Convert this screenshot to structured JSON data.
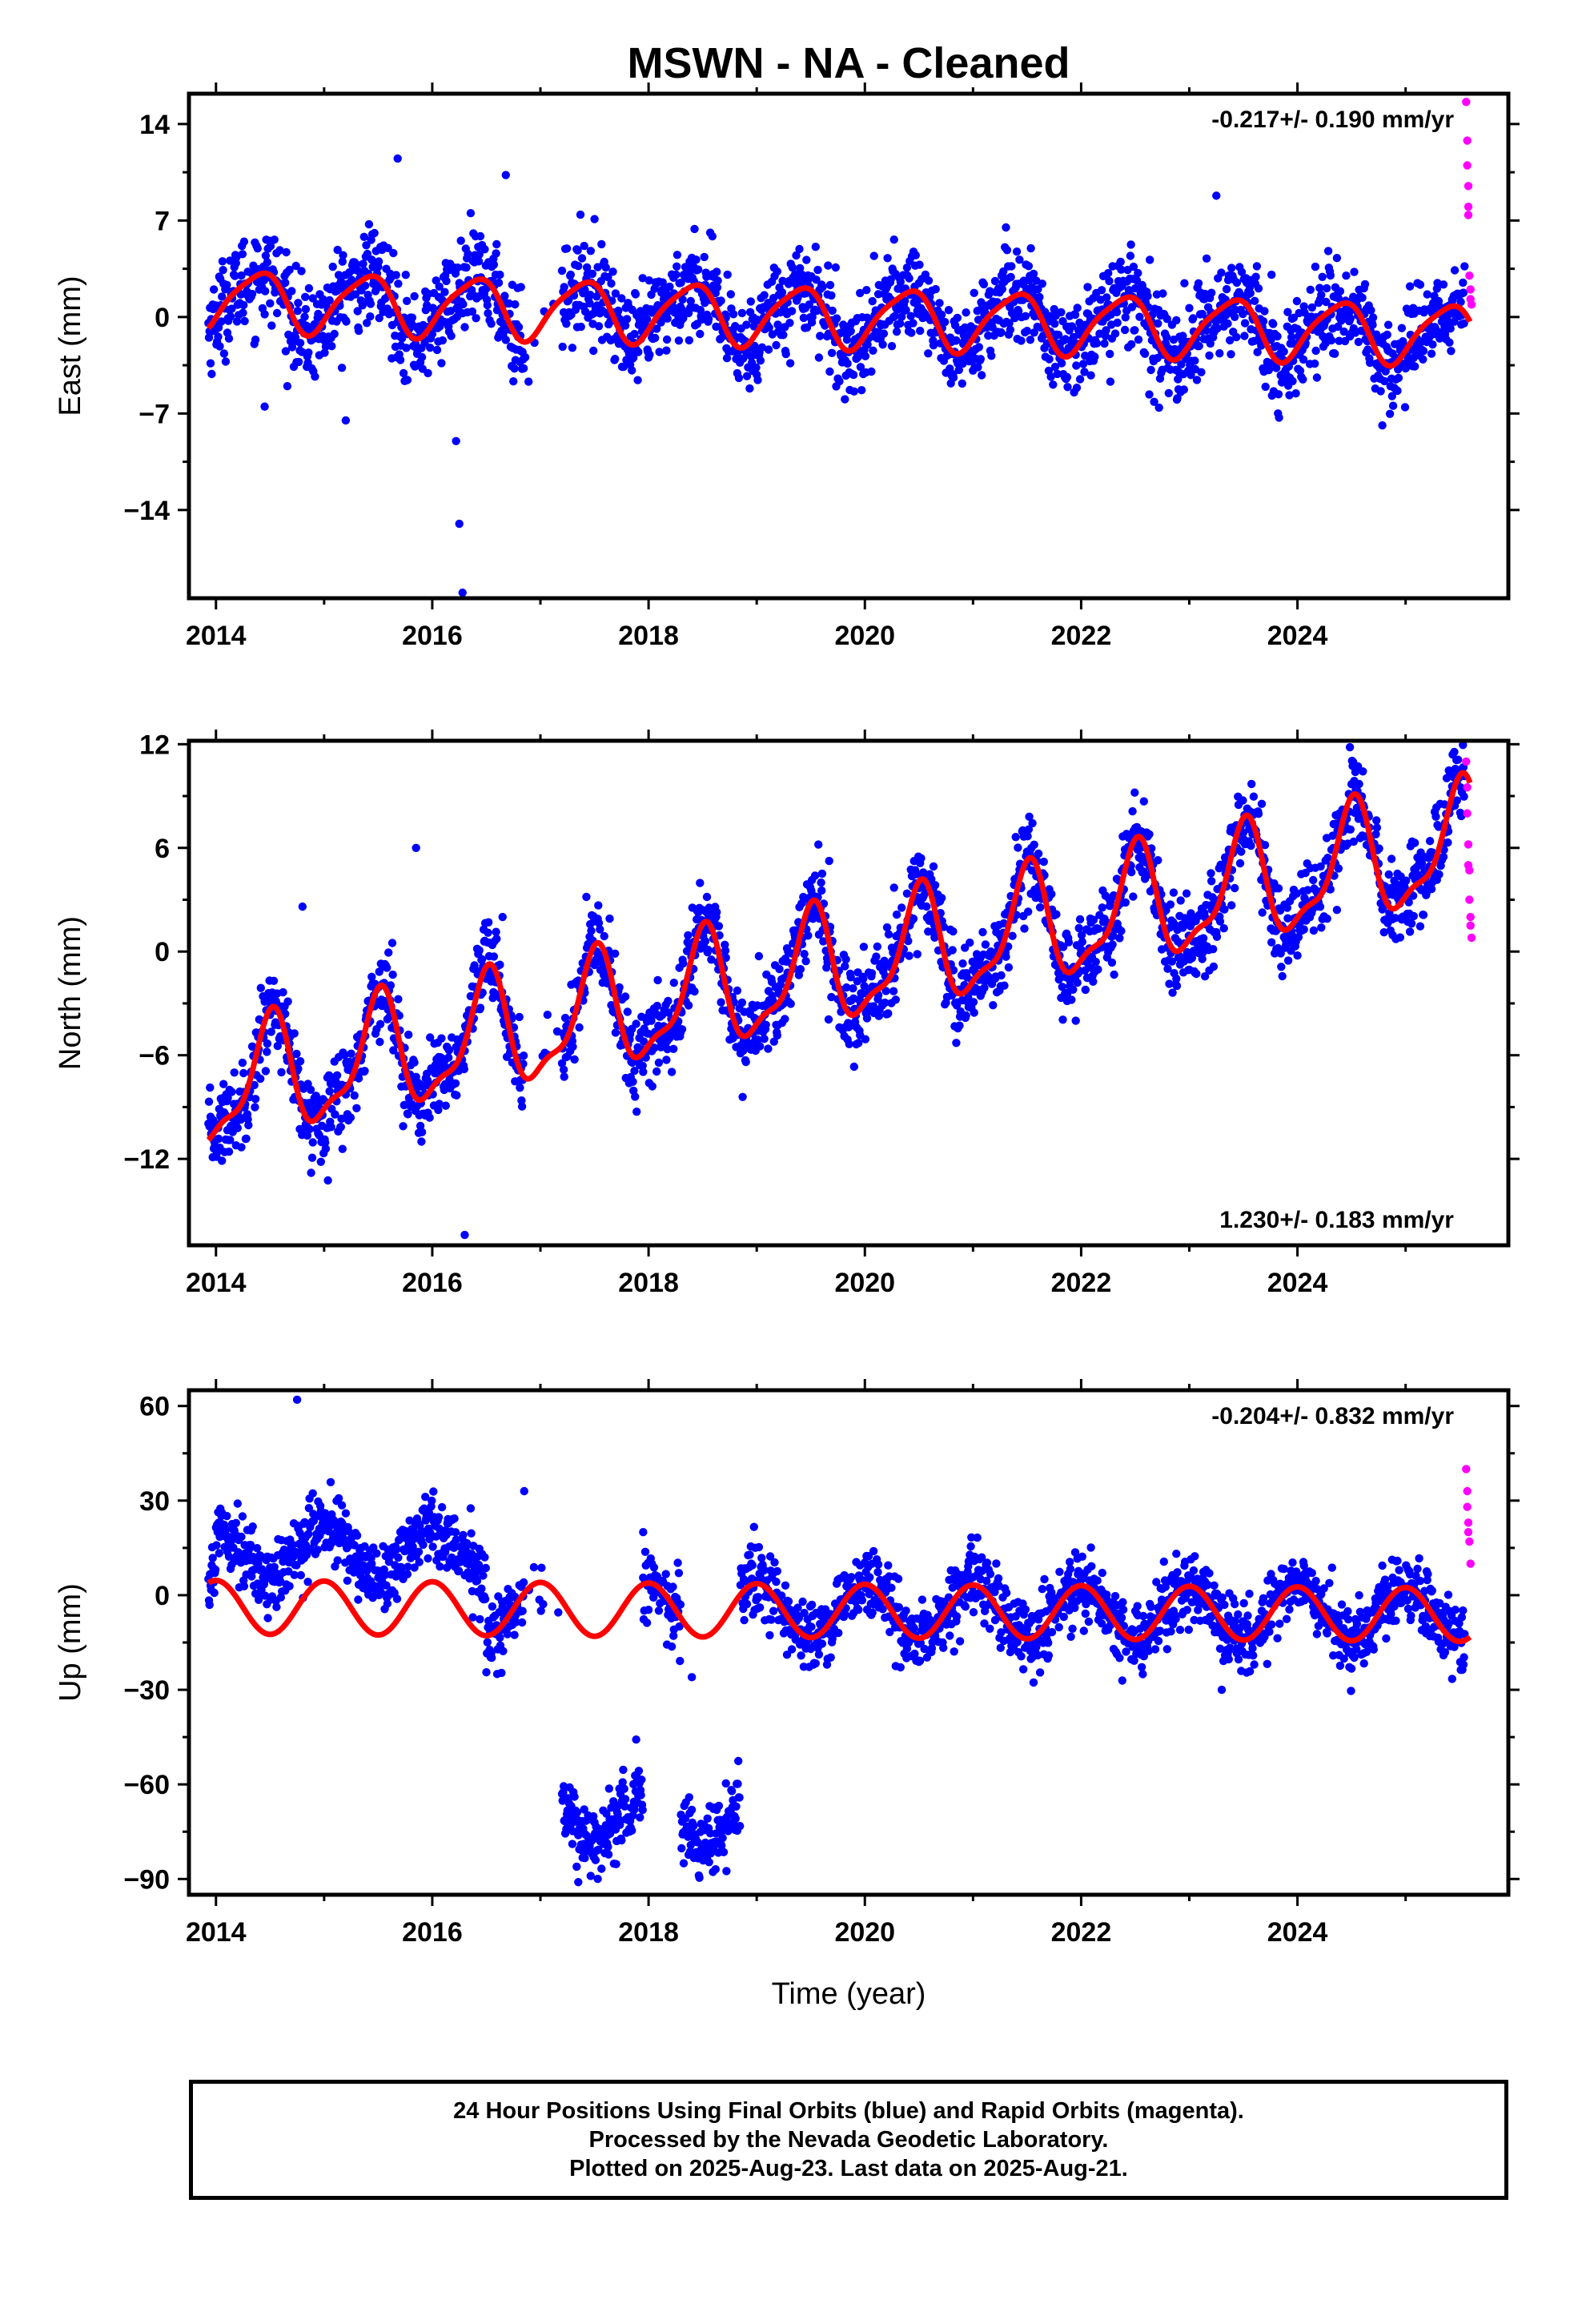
{
  "title": "MSWN  - NA - Cleaned",
  "xlabel": "Time (year)",
  "footer": {
    "line1": "24 Hour Positions Using Final Orbits (blue) and Rapid Orbits (magenta).",
    "line2": "Processed by the Nevada Geodetic Laboratory.",
    "line3": "Plotted on 2025-Aug-23. Last data on 2025-Aug-21."
  },
  "colors": {
    "final_orbits": "#0000ff",
    "rapid_orbits": "#ff00ff",
    "model": "#ff0000",
    "frame": "#000000"
  },
  "chart_data": [
    {
      "type": "scatter",
      "ylabel": "East (mm)",
      "rate_label": "-0.217+/- 0.190 mm/yr",
      "rate_position": "top-right",
      "xlim": [
        2013.75,
        2025.95
      ],
      "ylim": [
        -20.4,
        16.2
      ],
      "xticks": [
        2014,
        2016,
        2018,
        2020,
        2022,
        2024
      ],
      "xtick_labels": [
        "2014",
        "2016",
        "2018",
        "2020",
        "2022",
        "2024"
      ],
      "yticks": [
        14,
        7,
        0,
        -7,
        -14
      ],
      "ytick_labels": [
        "14",
        "7",
        "0",
        "−7",
        "−14"
      ],
      "trend": {
        "mean_year": 2019.8,
        "mean_value": 0.0,
        "rate": -0.217
      },
      "seasonal": {
        "annual_sin": 1.4,
        "annual_cos": -1.6,
        "semiannual_sin": 0.3,
        "semiannual_cos": 0.3
      },
      "noise_sd": 1.7,
      "gaps": [
        [
          2016.85,
          2017.2
        ]
      ],
      "final_orbit_outliers": [
        {
          "x": 2016.25,
          "y": -15.0
        },
        {
          "x": 2016.28,
          "y": -20.0
        },
        {
          "x": 2016.22,
          "y": -9.0
        },
        {
          "x": 2016.68,
          "y": 10.3
        },
        {
          "x": 2015.68,
          "y": 11.5
        },
        {
          "x": 2023.25,
          "y": 8.8
        },
        {
          "x": 2014.45,
          "y": -6.5
        },
        {
          "x": 2015.2,
          "y": -7.5
        }
      ],
      "rapid_orbits": [
        {
          "x": 2025.56,
          "y": 15.6
        },
        {
          "x": 2025.57,
          "y": 12.8
        },
        {
          "x": 2025.57,
          "y": 11.0
        },
        {
          "x": 2025.58,
          "y": 9.5
        },
        {
          "x": 2025.58,
          "y": 8.0
        },
        {
          "x": 2025.58,
          "y": 7.4
        },
        {
          "x": 2025.59,
          "y": 3.0
        },
        {
          "x": 2025.6,
          "y": 2.0
        },
        {
          "x": 2025.6,
          "y": 1.3
        },
        {
          "x": 2025.61,
          "y": 0.9
        }
      ]
    },
    {
      "type": "scatter",
      "ylabel": "North (mm)",
      "rate_label": "1.230+/- 0.183 mm/yr",
      "rate_position": "bottom-right",
      "xlim": [
        2013.75,
        2025.95
      ],
      "ylim": [
        -17,
        12.2
      ],
      "xticks": [
        2014,
        2016,
        2018,
        2020,
        2022,
        2024
      ],
      "xtick_labels": [
        "2014",
        "2016",
        "2018",
        "2020",
        "2022",
        "2024"
      ],
      "yticks": [
        12,
        6,
        0,
        -6,
        -12
      ],
      "ytick_labels": [
        "12",
        "6",
        "0",
        "−6",
        "−12"
      ],
      "trend": {
        "mean_year": 2019.8,
        "mean_value": -0.9,
        "rate": 1.23
      },
      "seasonal": {
        "annual_sin": 0.0,
        "annual_cos": -3.2,
        "semiannual_sin": 0.6,
        "semiannual_cos": 0.9
      },
      "noise_sd": 1.25,
      "gaps": [
        [
          2016.85,
          2017.2
        ]
      ],
      "final_orbit_outliers": [
        {
          "x": 2016.3,
          "y": -16.4
        },
        {
          "x": 2015.85,
          "y": 6.0
        },
        {
          "x": 2014.8,
          "y": 2.6
        },
        {
          "x": 2016.65,
          "y": 2.0
        }
      ],
      "rapid_orbits": [
        {
          "x": 2025.56,
          "y": 11.0
        },
        {
          "x": 2025.57,
          "y": 9.5
        },
        {
          "x": 2025.57,
          "y": 8.0
        },
        {
          "x": 2025.58,
          "y": 6.2
        },
        {
          "x": 2025.58,
          "y": 5.0
        },
        {
          "x": 2025.59,
          "y": 4.7
        },
        {
          "x": 2025.59,
          "y": 3.0
        },
        {
          "x": 2025.6,
          "y": 2.0
        },
        {
          "x": 2025.6,
          "y": 1.5
        },
        {
          "x": 2025.61,
          "y": 0.8
        }
      ]
    },
    {
      "type": "scatter",
      "ylabel": "Up (mm)",
      "rate_label": "-0.204+/- 0.832 mm/yr",
      "rate_position": "top-right",
      "xlim": [
        2013.75,
        2025.95
      ],
      "ylim": [
        -95,
        65
      ],
      "xticks": [
        2014,
        2016,
        2018,
        2020,
        2022,
        2024
      ],
      "xtick_labels": [
        "2014",
        "2016",
        "2018",
        "2020",
        "2022",
        "2024"
      ],
      "yticks": [
        60,
        30,
        0,
        -30,
        -60,
        -90
      ],
      "ytick_labels": [
        "60",
        "30",
        "0",
        "−30",
        "−60",
        "−90"
      ],
      "trend": {
        "mean_year": 2019.8,
        "mean_value": -5.0,
        "rate": -0.204
      },
      "seasonal": {
        "annual_sin": 0.0,
        "annual_cos": 8.5,
        "semiannual_sin": 0.0,
        "semiannual_cos": 0.0
      },
      "noise_sd": 5.5,
      "gaps": [
        [
          2016.85,
          2017.2
        ]
      ],
      "offset_segments": [
        {
          "start": 2014.0,
          "end": 2016.5,
          "shift": 18
        },
        {
          "start": 2017.2,
          "end": 2017.95,
          "shift": -65
        },
        {
          "start": 2018.3,
          "end": 2018.85,
          "shift": -65
        }
      ],
      "final_orbit_outliers": [
        {
          "x": 2014.75,
          "y": 62.0
        },
        {
          "x": 2016.6,
          "y": -25.0
        },
        {
          "x": 2016.85,
          "y": 33.0
        },
        {
          "x": 2017.95,
          "y": 20.0
        },
        {
          "x": 2018.4,
          "y": -26.0
        },
        {
          "x": 2023.3,
          "y": -30.0
        },
        {
          "x": 2017.35,
          "y": -91.0
        }
      ],
      "rapid_orbits": [
        {
          "x": 2025.56,
          "y": 40.0
        },
        {
          "x": 2025.57,
          "y": 33.0
        },
        {
          "x": 2025.57,
          "y": 28.0
        },
        {
          "x": 2025.58,
          "y": 23.0
        },
        {
          "x": 2025.58,
          "y": 20.0
        },
        {
          "x": 2025.59,
          "y": 17.0
        },
        {
          "x": 2025.6,
          "y": 10.0
        }
      ]
    }
  ]
}
